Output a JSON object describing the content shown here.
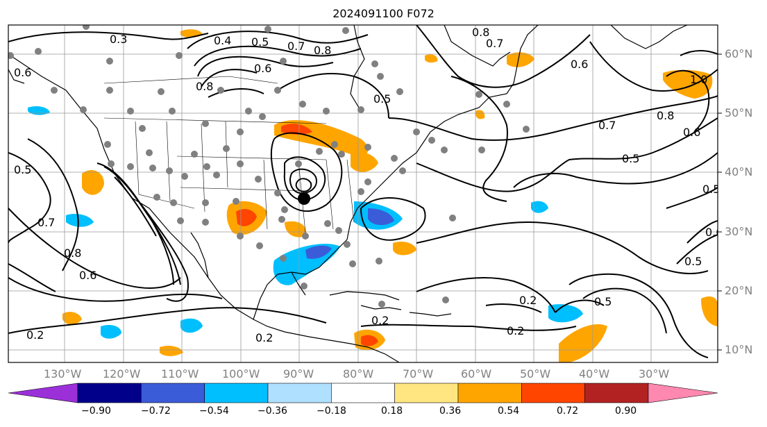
{
  "title": "2024091100 F072",
  "lat_labels": [
    "60°N",
    "50°N",
    "40°N",
    "30°N",
    "20°N",
    "10°N"
  ],
  "lon_labels": [
    "130°W",
    "120°W",
    "110°W",
    "100°W",
    "90°W",
    "80°W",
    "70°W",
    "60°W",
    "50°W",
    "40°W",
    "30°W"
  ],
  "colorbar": {
    "ticks": [
      "−0.90",
      "−0.72",
      "−0.54",
      "−0.36",
      "−0.18",
      "0.18",
      "0.36",
      "0.54",
      "0.72",
      "0.90"
    ],
    "colors": [
      "#9b30d9",
      "#00008b",
      "#3a5cd8",
      "#00bfff",
      "#b0e0ff",
      "#ffffff",
      "#ffe680",
      "#ffa500",
      "#ff4500",
      "#b22222",
      "#ff88b0"
    ]
  },
  "contour_labels": [
    "0.3",
    "0.4",
    "0.5",
    "0.7",
    "0.8",
    "0.6",
    "0.8",
    "0.5",
    "0.6",
    "0.8",
    "0.7",
    "0.7",
    "0.8",
    "0.6",
    "0.5",
    "0.5",
    "0.8",
    "0.6",
    "0.7",
    "0.5",
    "0.6",
    "0.2",
    "0.2",
    "0.5",
    "0.2",
    "0.2",
    "1.0",
    "0.6",
    "0.5",
    "0.2"
  ],
  "colors": {
    "grid": "#999999",
    "contour": "#000000",
    "axis_label": "#808080"
  },
  "storm_marker": "black-dot"
}
